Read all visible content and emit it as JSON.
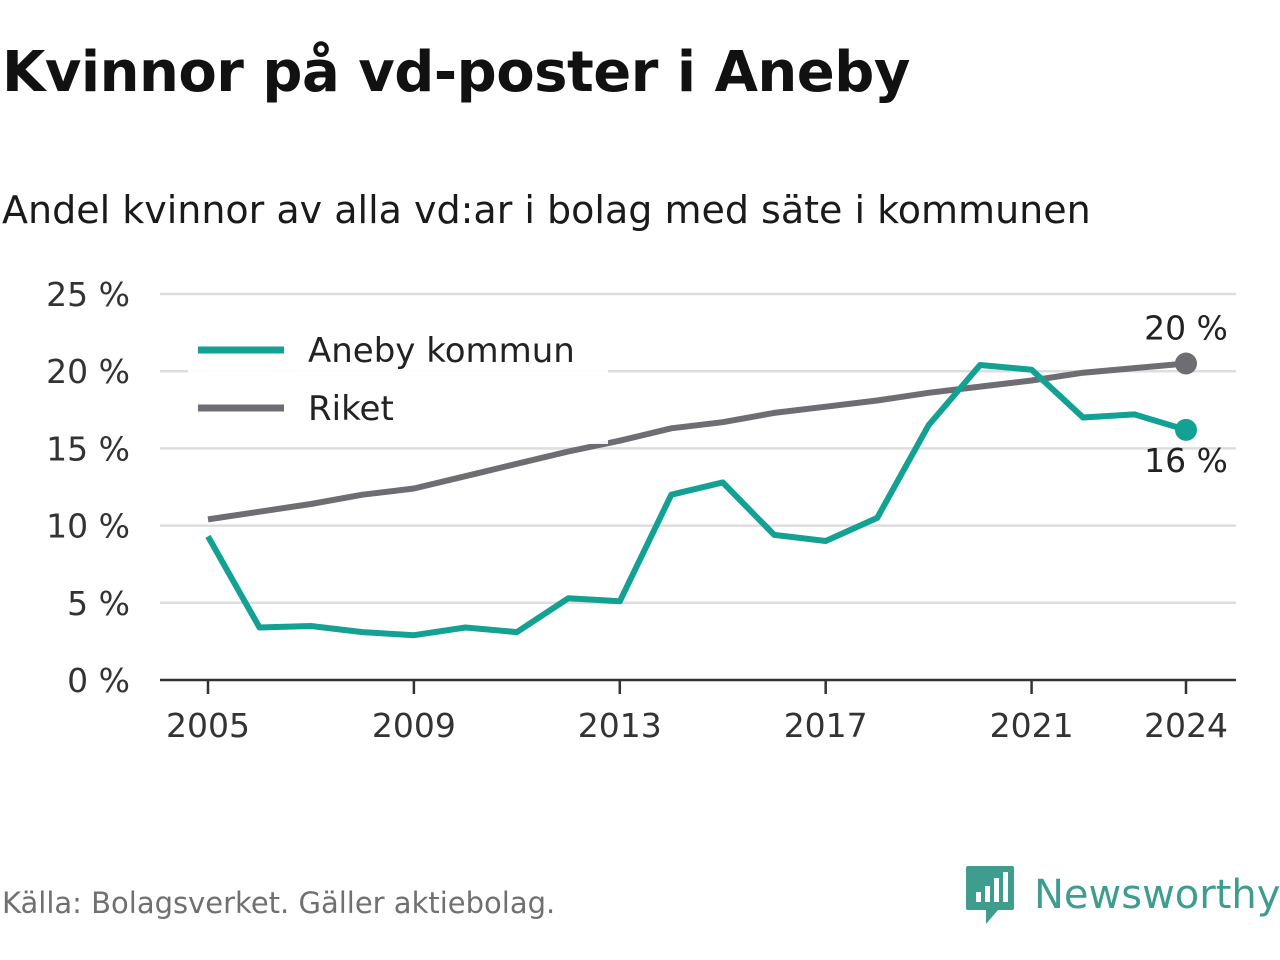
{
  "header": {
    "title": "Kvinnor på vd-poster i Aneby",
    "subtitle": "Andel kvinnor av alla vd:ar i bolag med säte i kommunen"
  },
  "footer": {
    "source": "Källa: Bolagsverket. Gäller aktiebolag.",
    "brand": "Newsworthy",
    "brand_color": "#3f9d90"
  },
  "chart_data": {
    "type": "line",
    "title": "Kvinnor på vd-poster i Aneby",
    "subtitle": "Andel kvinnor av alla vd:ar i bolag med säte i kommunen",
    "xlabel": "",
    "ylabel": "",
    "x": [
      2005,
      2006,
      2007,
      2008,
      2009,
      2010,
      2011,
      2012,
      2013,
      2014,
      2015,
      2016,
      2017,
      2018,
      2019,
      2020,
      2021,
      2022,
      2023,
      2024
    ],
    "x_ticks": [
      2005,
      2009,
      2013,
      2017,
      2021,
      2024
    ],
    "ylim": [
      0,
      25
    ],
    "y_ticks": [
      0,
      5,
      10,
      15,
      20,
      25
    ],
    "y_tick_labels": [
      "0 %",
      "5 %",
      "10 %",
      "15 %",
      "20 %",
      "25 %"
    ],
    "grid": true,
    "legend_position": "top-left",
    "series": [
      {
        "name": "Aneby kommun",
        "color": "#12a193",
        "values": [
          9.3,
          3.4,
          3.5,
          3.1,
          2.9,
          3.4,
          3.1,
          5.3,
          5.1,
          12.0,
          12.8,
          9.4,
          9.0,
          10.5,
          16.5,
          20.4,
          20.1,
          17.0,
          17.2,
          16.2
        ],
        "end_label": "16 %"
      },
      {
        "name": "Riket",
        "color": "#6e6d73",
        "values": [
          10.4,
          10.9,
          11.4,
          12.0,
          12.4,
          13.2,
          14.0,
          14.8,
          15.5,
          16.3,
          16.7,
          17.3,
          17.7,
          18.1,
          18.6,
          19.0,
          19.4,
          19.9,
          20.2,
          20.5
        ],
        "end_label": "20 %"
      }
    ]
  }
}
